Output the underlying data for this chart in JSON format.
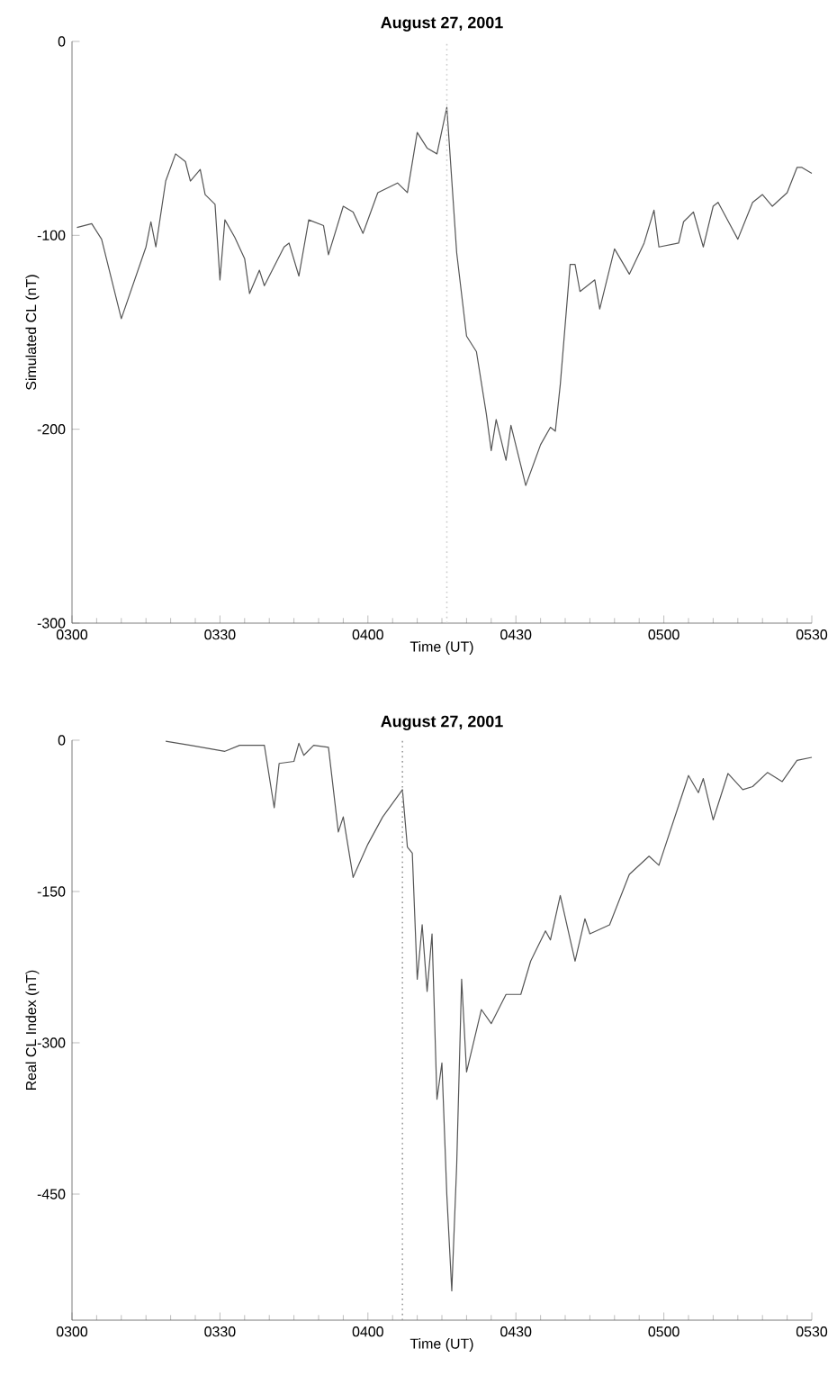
{
  "chart_data": [
    {
      "type": "line",
      "title": "August 27, 2001",
      "xlabel": "Time (UT)",
      "ylabel": "Simulated CL (nT)",
      "xlim": [
        "2001-08-27T03:00",
        "2001-08-27T05:30"
      ],
      "ylim": [
        -300,
        0
      ],
      "xticks": [
        {
          "value": "2001-08-27T03:00",
          "label": "0300"
        },
        {
          "value": "2001-08-27T03:30",
          "label": "0330"
        },
        {
          "value": "2001-08-27T04:00",
          "label": "0400"
        },
        {
          "value": "2001-08-27T04:30",
          "label": "0430"
        },
        {
          "value": "2001-08-27T05:00",
          "label": "0500"
        },
        {
          "value": "2001-08-27T05:30",
          "label": "0530"
        }
      ],
      "yticks": [
        -300,
        -200,
        -100,
        0
      ],
      "x": [
        "2001-08-27T03:01",
        "2001-08-27T03:04",
        "2001-08-27T03:06",
        "2001-08-27T03:10",
        "2001-08-27T03:15",
        "2001-08-27T03:16",
        "2001-08-27T03:17",
        "2001-08-27T03:19",
        "2001-08-27T03:21",
        "2001-08-27T03:23",
        "2001-08-27T03:24",
        "2001-08-27T03:26",
        "2001-08-27T03:27",
        "2001-08-27T03:29",
        "2001-08-27T03:30",
        "2001-08-27T03:31",
        "2001-08-27T03:33",
        "2001-08-27T03:35",
        "2001-08-27T03:36",
        "2001-08-27T03:38",
        "2001-08-27T03:39",
        "2001-08-27T03:43",
        "2001-08-27T03:44",
        "2001-08-27T03:46",
        "2001-08-27T03:48",
        "2001-08-27T03:51",
        "2001-08-27T03:52",
        "2001-08-27T03:55",
        "2001-08-27T03:57",
        "2001-08-27T03:59",
        "2001-08-27T04:02",
        "2001-08-27T04:06",
        "2001-08-27T04:08",
        "2001-08-27T04:10",
        "2001-08-27T04:12",
        "2001-08-27T04:14",
        "2001-08-27T04:16",
        "2001-08-27T04:18",
        "2001-08-27T04:20",
        "2001-08-27T04:22",
        "2001-08-27T04:24",
        "2001-08-27T04:25",
        "2001-08-27T04:26",
        "2001-08-27T04:28",
        "2001-08-27T04:29",
        "2001-08-27T04:32",
        "2001-08-27T04:35",
        "2001-08-27T04:37",
        "2001-08-27T04:38",
        "2001-08-27T04:39",
        "2001-08-27T04:40",
        "2001-08-27T04:41",
        "2001-08-27T04:42",
        "2001-08-27T04:43",
        "2001-08-27T04:46",
        "2001-08-27T04:47",
        "2001-08-27T04:50",
        "2001-08-27T04:53",
        "2001-08-27T04:56",
        "2001-08-27T04:58",
        "2001-08-27T04:59",
        "2001-08-27T05:03",
        "2001-08-27T05:04",
        "2001-08-27T05:06",
        "2001-08-27T05:08",
        "2001-08-27T05:10",
        "2001-08-27T05:11",
        "2001-08-27T05:15",
        "2001-08-27T05:18",
        "2001-08-27T05:20",
        "2001-08-27T05:22",
        "2001-08-27T05:25",
        "2001-08-27T05:27",
        "2001-08-27T05:28",
        "2001-08-27T05:30"
      ],
      "series": [
        {
          "color": "#555555",
          "values": [
            -96,
            -94,
            -102,
            -143,
            -106,
            -93,
            -106,
            -72,
            -58,
            -62,
            -72,
            -66,
            -79,
            -84,
            -123,
            -92,
            -101,
            -112,
            -130,
            -118,
            -126,
            -106,
            -104,
            -121,
            -92,
            -95,
            -110,
            -85,
            -88,
            -99,
            -78,
            -73,
            -78,
            -47,
            -55,
            -58,
            -34,
            -109,
            -152,
            -160,
            -192,
            -211,
            -195,
            -216,
            -198,
            -229,
            -208,
            -199,
            -201,
            -177,
            -146,
            -115,
            -115,
            -129,
            -123,
            -138,
            -107,
            -120,
            -104,
            -87,
            -106,
            -104,
            -93,
            -88,
            -106,
            -85,
            -83,
            -102,
            -83,
            -79,
            -85,
            -78,
            -65,
            -65,
            -68
          ]
        }
      ],
      "ref_lines": [
        {
          "axis": "x",
          "value": "2001-08-27T04:16",
          "color": "#cccccc",
          "line_style": "dotted"
        }
      ]
    },
    {
      "type": "line",
      "title": "August 27, 2001",
      "xlabel": "Time (UT)",
      "ylabel": "Real CL Index (nT)",
      "xlim": [
        "2001-08-27T03:00",
        "2001-08-27T05:30"
      ],
      "ylim": [
        -575,
        0
      ],
      "xticks": [
        {
          "value": "2001-08-27T03:00",
          "label": "0300"
        },
        {
          "value": "2001-08-27T03:30",
          "label": "0330"
        },
        {
          "value": "2001-08-27T04:00",
          "label": "0400"
        },
        {
          "value": "2001-08-27T04:30",
          "label": "0430"
        },
        {
          "value": "2001-08-27T05:00",
          "label": "0500"
        },
        {
          "value": "2001-08-27T05:30",
          "label": "0530"
        }
      ],
      "yticks": [
        -450,
        -300,
        -150,
        0
      ],
      "x": [
        "2001-08-27T03:19",
        "2001-08-27T03:24",
        "2001-08-27T03:31",
        "2001-08-27T03:34",
        "2001-08-27T03:39",
        "2001-08-27T03:41",
        "2001-08-27T03:42",
        "2001-08-27T03:45",
        "2001-08-27T03:46",
        "2001-08-27T03:47",
        "2001-08-27T03:49",
        "2001-08-27T03:52",
        "2001-08-27T03:54",
        "2001-08-27T03:55",
        "2001-08-27T03:57",
        "2001-08-27T04:00",
        "2001-08-27T04:03",
        "2001-08-27T04:07",
        "2001-08-27T04:08",
        "2001-08-27T04:09",
        "2001-08-27T04:10",
        "2001-08-27T04:11",
        "2001-08-27T04:12",
        "2001-08-27T04:13",
        "2001-08-27T04:14",
        "2001-08-27T04:15",
        "2001-08-27T04:16",
        "2001-08-27T04:17",
        "2001-08-27T04:18",
        "2001-08-27T04:19",
        "2001-08-27T04:20",
        "2001-08-27T04:23",
        "2001-08-27T04:25",
        "2001-08-27T04:28",
        "2001-08-27T04:31",
        "2001-08-27T04:33",
        "2001-08-27T04:36",
        "2001-08-27T04:37",
        "2001-08-27T04:39",
        "2001-08-27T04:42",
        "2001-08-27T04:44",
        "2001-08-27T04:45",
        "2001-08-27T04:49",
        "2001-08-27T04:53",
        "2001-08-27T04:57",
        "2001-08-27T04:59",
        "2001-08-27T05:05",
        "2001-08-27T05:07",
        "2001-08-27T05:08",
        "2001-08-27T05:10",
        "2001-08-27T05:13",
        "2001-08-27T05:16",
        "2001-08-27T05:18",
        "2001-08-27T05:21",
        "2001-08-27T05:24",
        "2001-08-27T05:27",
        "2001-08-27T05:30"
      ],
      "series": [
        {
          "color": "#555555",
          "values": [
            -1,
            -5,
            -11,
            -5,
            -5,
            -67,
            -23,
            -21,
            -3,
            -15,
            -5,
            -7,
            -91,
            -76,
            -136,
            -103,
            -76,
            -49,
            -106,
            -112,
            -237,
            -183,
            -249,
            -192,
            -356,
            -320,
            -451,
            -546,
            -421,
            -237,
            -329,
            -267,
            -281,
            -252,
            -252,
            -219,
            -189,
            -198,
            -154,
            -219,
            -177,
            -192,
            -183,
            -133,
            -115,
            -124,
            -35,
            -52,
            -38,
            -79,
            -33,
            -49,
            -46,
            -32,
            -41,
            -20,
            -17
          ]
        }
      ],
      "ref_lines": [
        {
          "axis": "x",
          "value": "2001-08-27T04:07",
          "color": "#999999",
          "line_style": "dotted"
        }
      ]
    }
  ]
}
